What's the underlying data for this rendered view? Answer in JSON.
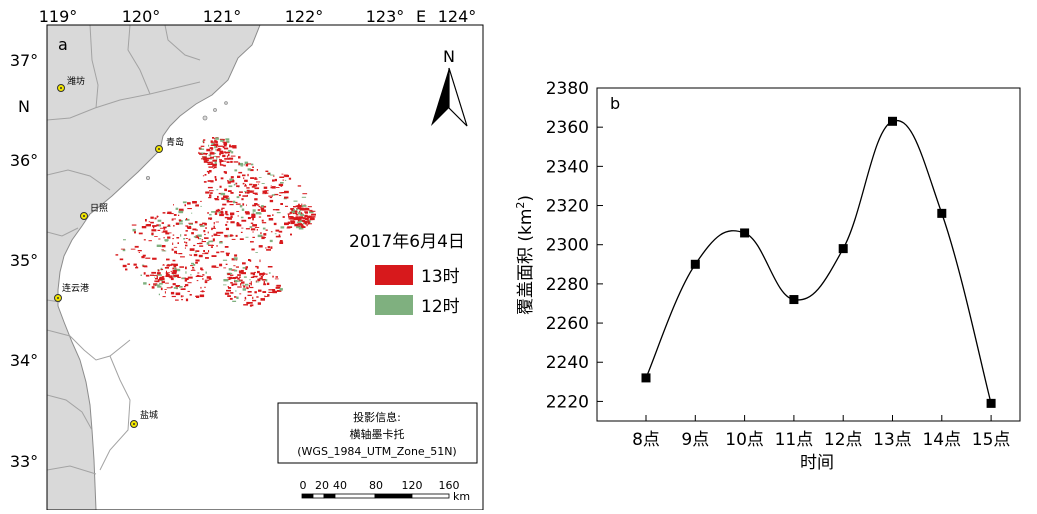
{
  "map_panel": {
    "panel_label": "a",
    "lon_ticks": [
      "119°",
      "120°",
      "121°",
      "122°",
      "123°",
      "124°"
    ],
    "lon_axis_letter": "E",
    "lat_ticks": [
      "37°",
      "36°",
      "35°",
      "34°",
      "33°"
    ],
    "lat_axis_letter": "N",
    "north_arrow_label": "N",
    "cities": [
      "潍坊",
      "青岛",
      "日照",
      "连云港",
      "盐城"
    ],
    "legend": {
      "date": "2017年6月4日",
      "items": [
        {
          "label": "13时",
          "color": "#d7191c"
        },
        {
          "label": "12时",
          "color": "#7fb07f"
        }
      ]
    },
    "projection": {
      "title": "投影信息:",
      "line1": "横轴墨卡托",
      "line2": "(WGS_1984_UTM_Zone_51N)"
    },
    "scalebar": {
      "ticks": [
        "0",
        "20",
        "40",
        "80",
        "120",
        "160"
      ],
      "unit": "km"
    },
    "colors": {
      "land": "#d9d9d9",
      "sea": "#ffffff",
      "border": "#9a9a9a",
      "city_marker": "#f2e600"
    }
  },
  "chart_data": {
    "type": "line",
    "panel_label": "b",
    "categories": [
      "8点",
      "9点",
      "10点",
      "11点",
      "12点",
      "13点",
      "14点",
      "15点"
    ],
    "values": [
      2232,
      2290,
      2306,
      2272,
      2298,
      2363,
      2316,
      2219
    ],
    "xlabel": "时间",
    "ylabel_main": "覆盖面积 (km",
    "ylabel_sup": "2",
    "ylabel_tail": ")",
    "ylim": [
      2210,
      2380
    ],
    "yticks": [
      2220,
      2240,
      2260,
      2280,
      2300,
      2320,
      2340,
      2360,
      2380
    ],
    "marker": "square",
    "curve": "smooth"
  }
}
